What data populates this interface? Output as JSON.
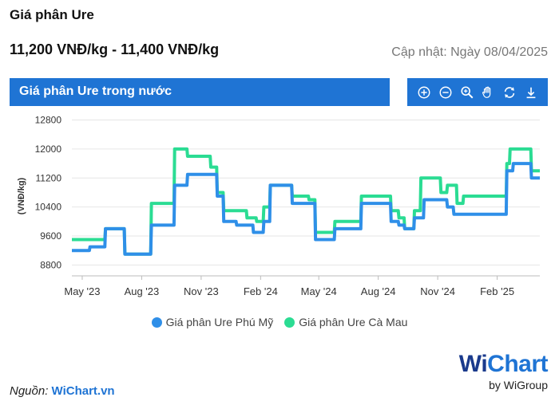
{
  "header": {
    "title": "Giá phân Ure",
    "price_range": "11,200 VNĐ/kg - 11,400 VNĐ/kg",
    "updated": "Cập nhật: Ngày 08/04/2025"
  },
  "banner": {
    "label": "Giá phân Ure trong nước"
  },
  "toolbar": {
    "icons": [
      "zoom-in-icon",
      "zoom-out-icon",
      "magnifier-icon",
      "pan-hand-icon",
      "reset-icon",
      "download-icon"
    ]
  },
  "colors": {
    "accent": "#1f74d4",
    "series_1": "#2f8fe8",
    "series_2": "#2bdc93"
  },
  "footer": {
    "source_prefix": "Nguồn:",
    "source_name": "WiChart.vn"
  },
  "logo": {
    "brand": "WiChart",
    "brand_w": "Wi",
    "brand_rest": "Chart",
    "sub": "by WiGroup"
  },
  "chart_data": {
    "type": "line",
    "title": "",
    "xlabel": "",
    "ylabel": "(VNĐ/kg)",
    "ylim": [
      8500,
      12900
    ],
    "xlim": [
      "2023-04-15",
      "2025-04-08"
    ],
    "yticks": [
      8800,
      9600,
      10400,
      11200,
      12000,
      12800
    ],
    "xticks": [
      {
        "label": "May '23",
        "date": "2023-05-01"
      },
      {
        "label": "Aug '23",
        "date": "2023-08-01"
      },
      {
        "label": "Nov '23",
        "date": "2023-11-01"
      },
      {
        "label": "Feb '24",
        "date": "2024-02-01"
      },
      {
        "label": "May '24",
        "date": "2024-05-01"
      },
      {
        "label": "Aug '24",
        "date": "2024-08-01"
      },
      {
        "label": "Nov '24",
        "date": "2024-11-01"
      },
      {
        "label": "Feb '25",
        "date": "2025-02-01"
      }
    ],
    "grid": true,
    "legend": "bottom",
    "series": [
      {
        "name": "Giá phân Ure Phú Mỹ",
        "points": [
          [
            "2023-04-15",
            9200
          ],
          [
            "2023-05-12",
            9200
          ],
          [
            "2023-05-13",
            9300
          ],
          [
            "2023-06-05",
            9300
          ],
          [
            "2023-06-06",
            9800
          ],
          [
            "2023-07-05",
            9800
          ],
          [
            "2023-07-06",
            9100
          ],
          [
            "2023-08-15",
            9100
          ],
          [
            "2023-08-16",
            9900
          ],
          [
            "2023-09-20",
            9900
          ],
          [
            "2023-09-21",
            11000
          ],
          [
            "2023-10-10",
            11000
          ],
          [
            "2023-10-11",
            11300
          ],
          [
            "2023-11-25",
            11300
          ],
          [
            "2023-11-26",
            10700
          ],
          [
            "2023-12-05",
            10700
          ],
          [
            "2023-12-06",
            10000
          ],
          [
            "2023-12-25",
            10000
          ],
          [
            "2023-12-26",
            9900
          ],
          [
            "2024-01-20",
            9900
          ],
          [
            "2024-01-21",
            9700
          ],
          [
            "2024-02-05",
            9700
          ],
          [
            "2024-02-06",
            10000
          ],
          [
            "2024-02-15",
            10000
          ],
          [
            "2024-02-16",
            11000
          ],
          [
            "2024-03-20",
            11000
          ],
          [
            "2024-03-21",
            10500
          ],
          [
            "2024-04-25",
            10500
          ],
          [
            "2024-04-26",
            9500
          ],
          [
            "2024-05-25",
            9500
          ],
          [
            "2024-05-26",
            9800
          ],
          [
            "2024-07-05",
            9800
          ],
          [
            "2024-07-06",
            10500
          ],
          [
            "2024-08-20",
            10500
          ],
          [
            "2024-08-21",
            10000
          ],
          [
            "2024-09-01",
            10000
          ],
          [
            "2024-09-02",
            9900
          ],
          [
            "2024-09-10",
            9900
          ],
          [
            "2024-09-11",
            9800
          ],
          [
            "2024-09-25",
            9800
          ],
          [
            "2024-09-26",
            10100
          ],
          [
            "2024-10-10",
            10100
          ],
          [
            "2024-10-11",
            10600
          ],
          [
            "2024-11-15",
            10600
          ],
          [
            "2024-11-16",
            10400
          ],
          [
            "2024-11-25",
            10400
          ],
          [
            "2024-11-26",
            10200
          ],
          [
            "2025-02-15",
            10200
          ],
          [
            "2025-02-16",
            11400
          ],
          [
            "2025-02-25",
            11400
          ],
          [
            "2025-02-26",
            11600
          ],
          [
            "2025-03-25",
            11600
          ],
          [
            "2025-03-26",
            11200
          ],
          [
            "2025-04-08",
            11200
          ]
        ]
      },
      {
        "name": "Giá phân Ure Cà Mau",
        "points": [
          [
            "2023-04-15",
            9500
          ],
          [
            "2023-06-05",
            9500
          ],
          [
            "2023-06-06",
            9800
          ],
          [
            "2023-07-05",
            9800
          ],
          [
            "2023-07-06",
            9100
          ],
          [
            "2023-08-15",
            9100
          ],
          [
            "2023-08-16",
            10500
          ],
          [
            "2023-09-20",
            10500
          ],
          [
            "2023-09-21",
            12000
          ],
          [
            "2023-10-10",
            12000
          ],
          [
            "2023-10-11",
            11800
          ],
          [
            "2023-11-15",
            11800
          ],
          [
            "2023-11-16",
            11500
          ],
          [
            "2023-11-25",
            11500
          ],
          [
            "2023-11-26",
            10800
          ],
          [
            "2023-12-05",
            10800
          ],
          [
            "2023-12-06",
            10300
          ],
          [
            "2024-01-10",
            10300
          ],
          [
            "2024-01-11",
            10100
          ],
          [
            "2024-01-25",
            10100
          ],
          [
            "2024-01-26",
            10000
          ],
          [
            "2024-02-05",
            10000
          ],
          [
            "2024-02-06",
            10400
          ],
          [
            "2024-02-15",
            10400
          ],
          [
            "2024-02-16",
            11000
          ],
          [
            "2024-03-20",
            11000
          ],
          [
            "2024-03-21",
            10700
          ],
          [
            "2024-04-15",
            10700
          ],
          [
            "2024-04-16",
            10600
          ],
          [
            "2024-04-25",
            10600
          ],
          [
            "2024-04-26",
            9700
          ],
          [
            "2024-05-25",
            9700
          ],
          [
            "2024-05-26",
            10000
          ],
          [
            "2024-07-05",
            10000
          ],
          [
            "2024-07-06",
            10700
          ],
          [
            "2024-08-20",
            10700
          ],
          [
            "2024-08-21",
            10300
          ],
          [
            "2024-09-01",
            10300
          ],
          [
            "2024-09-02",
            10100
          ],
          [
            "2024-09-10",
            10100
          ],
          [
            "2024-09-11",
            9800
          ],
          [
            "2024-09-25",
            9800
          ],
          [
            "2024-09-26",
            10300
          ],
          [
            "2024-10-05",
            10300
          ],
          [
            "2024-10-06",
            11200
          ],
          [
            "2024-11-05",
            11200
          ],
          [
            "2024-11-06",
            10800
          ],
          [
            "2024-11-15",
            10800
          ],
          [
            "2024-11-16",
            11000
          ],
          [
            "2024-11-30",
            11000
          ],
          [
            "2024-12-01",
            10500
          ],
          [
            "2024-12-10",
            10500
          ],
          [
            "2024-12-11",
            10700
          ],
          [
            "2025-02-15",
            10700
          ],
          [
            "2025-02-16",
            11600
          ],
          [
            "2025-02-20",
            11600
          ],
          [
            "2025-02-21",
            12000
          ],
          [
            "2025-03-25",
            12000
          ],
          [
            "2025-03-26",
            11400
          ],
          [
            "2025-04-08",
            11400
          ]
        ]
      }
    ]
  }
}
